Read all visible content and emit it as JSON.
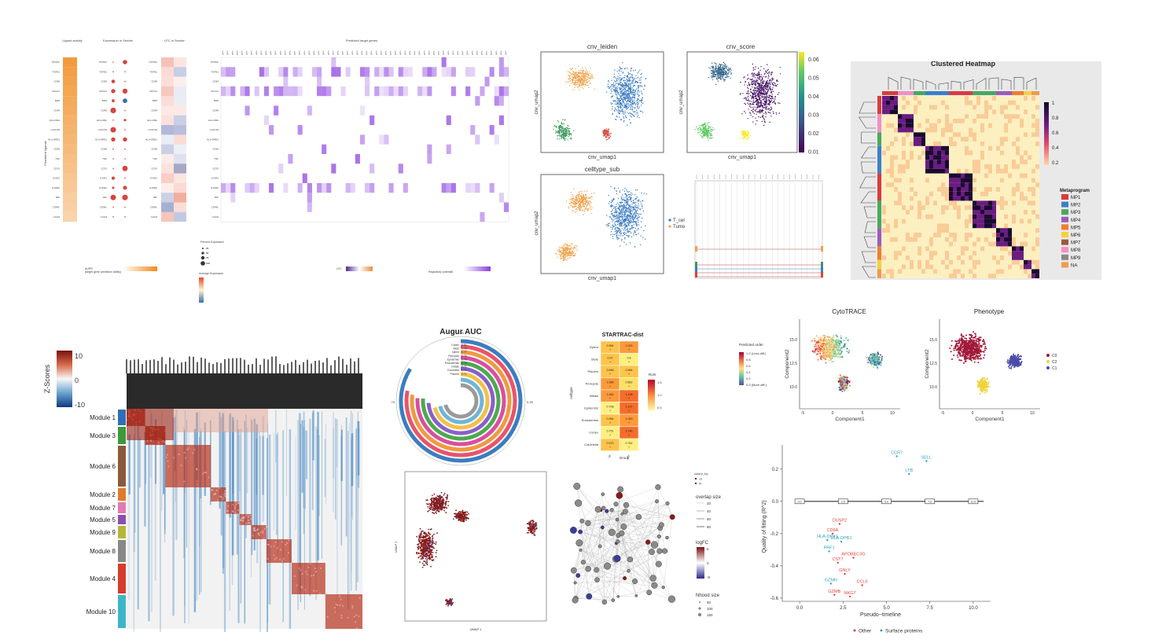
{
  "colors": {
    "orange": "#f0a24a",
    "blue": "#3b7dc0",
    "green": "#3a9a5c",
    "red": "#d6453d",
    "purple": "#8b5fd0",
    "teal": "#3bb3c8",
    "darkred": "#8f1a14",
    "grey": "#7a7a7a"
  },
  "top_left": {
    "ligand_activity_title": "Ligand activity",
    "expression_title": "Expression in Sender",
    "lfc_title": "LFC in Sender",
    "predicted_title": "Predicted target genes",
    "y_axis_label": "Prioritized ligands",
    "ligands": [
      "PTPRC",
      "TGFB1",
      "CD58",
      "ANXA1",
      "B2M",
      "CD48",
      "HLA-DRA",
      "LGALS9",
      "HLA-DRB1",
      "CD99",
      "TNF",
      "CD70",
      "ICAM1",
      "IL15RA",
      "MIF",
      "CD99L",
      "CALM"
    ],
    "auc_legend_title": "AUPR",
    "auc_legend_sub": "(target gene prediction ability)",
    "pct_legend_title": "Percent Expressed",
    "pct_values": [
      "25",
      "50",
      "75",
      "100"
    ],
    "avg_legend_title": "Average Expression",
    "lfc_legend_title": "LFC",
    "reg_legend_title": "Regulatory potential"
  },
  "umap_panels": {
    "leiden_title": "cnv_leiden",
    "score_title": "cnv_score",
    "celltype_title": "celltype_sub",
    "xlabel": "cnv_umap1",
    "ylabel": "cnv_umap2",
    "legend_items": [
      "T_cel",
      "Tumo"
    ],
    "score_ticks": [
      "0.06",
      "0.05",
      "0.04",
      "0.03",
      "0.02",
      "0.01"
    ]
  },
  "clustered_heatmap": {
    "title": "Clustered Heatmap",
    "legend_title": "Metaprogram",
    "programs": [
      "MP1",
      "MP2",
      "MP3",
      "MP4",
      "MP5",
      "MP6",
      "MP7",
      "MP8",
      "MP9",
      "NA"
    ],
    "program_colors": [
      "#d83c3c",
      "#3c7fc4",
      "#4ba85a",
      "#9c5cb8",
      "#f07e2c",
      "#f2d23c",
      "#9b5a3a",
      "#f090c0",
      "#888888",
      "#f29a4a"
    ],
    "scale_ticks": [
      "1",
      "0.8",
      "0.6",
      "0.4",
      "0.2"
    ]
  },
  "module_heatmap": {
    "zscore_label": "Z-Scores",
    "scale_ticks": [
      "10",
      "0",
      "-10"
    ],
    "modules": [
      "Module 1",
      "Module 3",
      "Module 6",
      "Module 2",
      "Module 7",
      "Module 5",
      "Module 9",
      "Module 8",
      "Module 4",
      "Module 10"
    ],
    "module_colors": [
      "#2f6fb5",
      "#3c9a3c",
      "#8b5a3c",
      "#e07a2c",
      "#e07ab0",
      "#8a4fb0",
      "#b5b53c",
      "#888888",
      "#d63c2c",
      "#3cb5c8"
    ]
  },
  "augur": {
    "title": "Augur AUC",
    "celltypes": [
      "Cortex",
      "Stele",
      "Xylem",
      "Pericycle",
      "Epidermis",
      "Endodermis",
      "Initials",
      "Columella",
      "Phloem"
    ],
    "auc_values": [
      "0.84",
      "0.78",
      "0.77",
      "0.76",
      "0.76",
      "0.74",
      "0.71",
      "0.71",
      "0.71"
    ],
    "ring_colors": [
      "#3b7dc0",
      "#e9546b",
      "#f09a40",
      "#d94fa0",
      "#4fa84f",
      "#8a5fc8",
      "#f2c14a",
      "#6fb5d8",
      "#9a9a9a"
    ],
    "tick_labels": [
      "0.25",
      "0.50",
      "0.75",
      "1.00"
    ]
  },
  "startrac": {
    "title": "STARTRAC-dist",
    "rows": [
      "Xylem",
      "Stele",
      "Phloem",
      "Pericycle",
      "Initials",
      "Epidermis",
      "Endodermis",
      "Cortex",
      "Columella"
    ],
    "cols": [
      "ctl",
      "trt"
    ],
    "cells": [
      [
        "0.954",
        "1.025"
      ],
      [
        "0.97",
        "0.8"
      ],
      [
        "0.946",
        "0.954"
      ],
      [
        "1.085",
        "0.862"
      ],
      [
        "1.062",
        "1.108"
      ],
      [
        "0.708",
        "1.137"
      ],
      [
        "0.954",
        "1.049"
      ],
      [
        "0.751",
        "1.146"
      ],
      [
        "0.973",
        "0.762"
      ]
    ],
    "ylabel": "celltype",
    "xlabel": "Group",
    "legend_title": "Ro/e",
    "legend_ticks": [
      "1.5",
      "1.0",
      "0.5"
    ]
  },
  "milo": {
    "xlabel": "UMAP 1",
    "ylabel": "UMAP 2",
    "legend_colour": "colour_by",
    "legend_groups": [
      "ctl",
      "trt"
    ],
    "overlap_title": "overlap size",
    "overlap_ticks": [
      "20",
      "40",
      "60",
      "80"
    ],
    "logfc_title": "logFC",
    "logfc_ticks": [
      "5",
      "0",
      "-5"
    ],
    "nhood_title": "Nhood size",
    "nhood_ticks": [
      "50",
      "100",
      "150"
    ]
  },
  "cytotrace": {
    "title_left": "CytoTRACE",
    "title_right": "Phenotype",
    "xlabel": "Component1",
    "ylabel": "Component2",
    "legend_title": "Predicted order",
    "legend_items": [
      "1.0 (Less diff.)",
      "0.8",
      "0.6",
      "0.4",
      "0.2",
      "0.0 (More diff.)"
    ],
    "phenotype_items": [
      "C0",
      "C2",
      "C1"
    ],
    "phenotype_colors": [
      "#a3193a",
      "#f2d23c",
      "#4a4aa8"
    ],
    "x_ticks": [
      "-5",
      "0",
      "5",
      "10"
    ],
    "y_ticks": [
      "15.0",
      "12.5",
      "10.0"
    ]
  },
  "chart_data": {
    "type": "scatter",
    "title": "",
    "xlabel": "Pseudo−timeline",
    "ylabel": "Quality of fitting (R^2)",
    "xlim": [
      -1,
      11
    ],
    "ylim": [
      -0.62,
      0.35
    ],
    "x_ticks": [
      "0.0",
      "2.5",
      "5.0",
      "7.5",
      "10.0"
    ],
    "y_ticks": [
      "0.2",
      "0.0",
      "-0.2",
      "-0.4",
      "-0.6"
    ],
    "timeline_labels": [
      "0.0",
      "2.5",
      "5.0",
      "7.5",
      "10.0"
    ],
    "series": [
      {
        "name": "Other",
        "color": "#e0403c",
        "points": [
          {
            "label": "DUSP2",
            "x": 2.3,
            "y": -0.14
          },
          {
            "label": "CD6A",
            "x": 1.9,
            "y": -0.2
          },
          {
            "label": "APOBEC3G",
            "x": 3.1,
            "y": -0.35
          },
          {
            "label": "CST7",
            "x": 2.2,
            "y": -0.38
          },
          {
            "label": "GNLY",
            "x": 2.6,
            "y": -0.45
          },
          {
            "label": "CCL5",
            "x": 3.6,
            "y": -0.52
          },
          {
            "label": "GZMB",
            "x": 2.0,
            "y": -0.58
          },
          {
            "label": "NKG7",
            "x": 2.9,
            "y": -0.59
          }
        ]
      },
      {
        "name": "Surface proteins",
        "color": "#2aa5b5",
        "points": [
          {
            "label": "CCR7",
            "x": 5.6,
            "y": 0.28
          },
          {
            "label": "SELL",
            "x": 7.3,
            "y": 0.25
          },
          {
            "label": "LTB",
            "x": 6.3,
            "y": 0.17
          },
          {
            "label": "HLA-DPA1",
            "x": 1.6,
            "y": -0.24
          },
          {
            "label": "HLA-DPB1",
            "x": 2.4,
            "y": -0.25
          },
          {
            "label": "PRF1",
            "x": 1.7,
            "y": -0.31
          },
          {
            "label": "GZMH",
            "x": 1.8,
            "y": -0.51
          }
        ]
      }
    ]
  }
}
